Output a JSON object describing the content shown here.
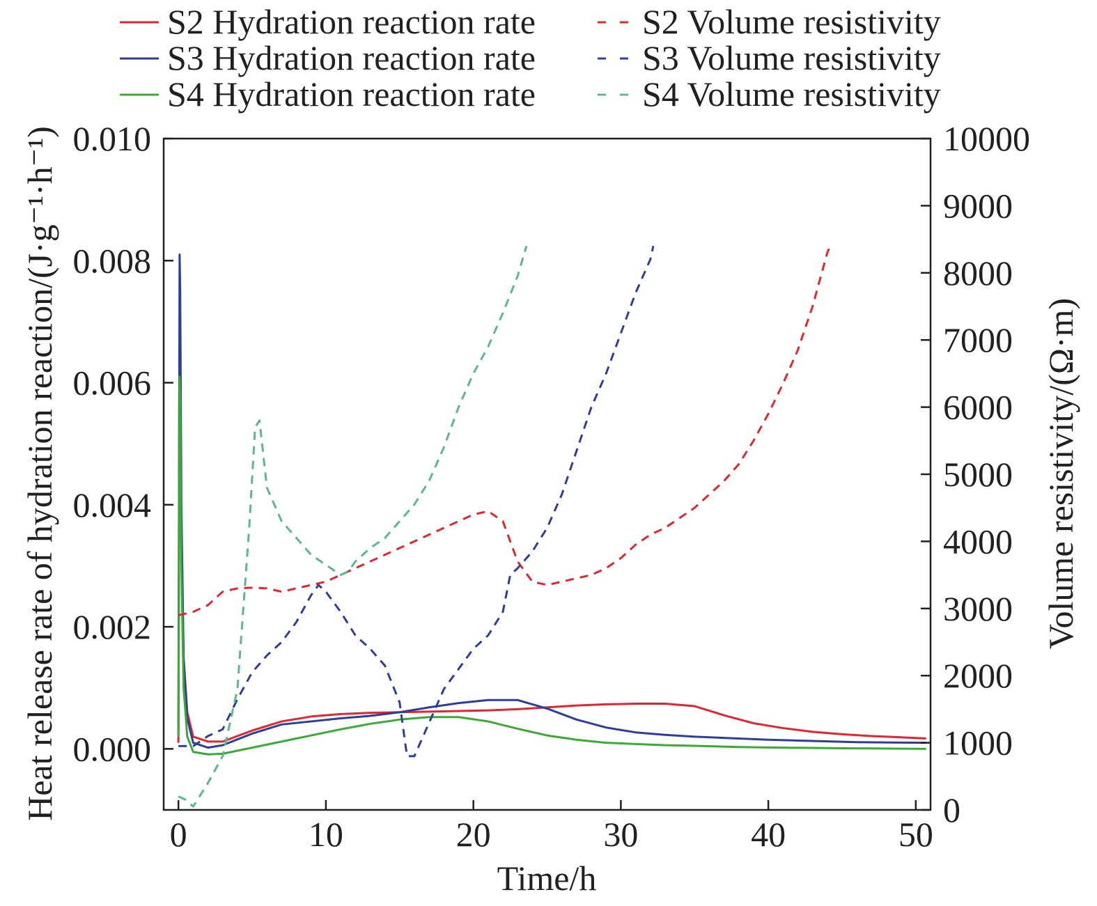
{
  "chart_data": {
    "type": "line",
    "title": "",
    "xlabel": "Time/h",
    "ylabel_left": "Heat release rate of hydration reaction/(J·g⁻¹·h⁻¹)",
    "ylabel_right": "Volume resistivity/(Ω·m)",
    "xlim": [
      -1,
      51
    ],
    "ylim_left": [
      -0.001,
      0.01
    ],
    "ylim_right": [
      0,
      10000
    ],
    "x_ticks": [
      "0",
      "10",
      "20",
      "30",
      "40",
      "50"
    ],
    "y_left_ticks": [
      "0.000",
      "0.002",
      "0.004",
      "0.006",
      "0.008",
      "0.010"
    ],
    "y_right_ticks": [
      "0",
      "1000",
      "2000",
      "3000",
      "4000",
      "5000",
      "6000",
      "7000",
      "8000",
      "9000",
      "10000"
    ],
    "grid": false,
    "legend_position": "top",
    "series": [
      {
        "name": "S2 Hydration reaction rate",
        "axis": "left",
        "style": "solid",
        "color": "#e0262f",
        "points": [
          [
            0.0,
            0.0001
          ],
          [
            0.06,
            0.0058
          ],
          [
            0.1,
            0.0062
          ],
          [
            0.2,
            0.0035
          ],
          [
            0.35,
            0.0015
          ],
          [
            0.6,
            0.0006
          ],
          [
            1,
            0.0002
          ],
          [
            2,
            0.00012
          ],
          [
            3,
            0.00012
          ],
          [
            5,
            0.0003
          ],
          [
            7,
            0.00045
          ],
          [
            9,
            0.00053
          ],
          [
            11,
            0.00057
          ],
          [
            13,
            0.00059
          ],
          [
            15,
            0.0006
          ],
          [
            17,
            0.00061
          ],
          [
            19,
            0.00062
          ],
          [
            21,
            0.00063
          ],
          [
            23,
            0.00065
          ],
          [
            25,
            0.00068
          ],
          [
            27,
            0.00071
          ],
          [
            29,
            0.00073
          ],
          [
            31,
            0.00074
          ],
          [
            33,
            0.00074
          ],
          [
            35,
            0.0007
          ],
          [
            37,
            0.00055
          ],
          [
            39,
            0.00042
          ],
          [
            41,
            0.00034
          ],
          [
            43,
            0.00028
          ],
          [
            45,
            0.00024
          ],
          [
            47,
            0.00021
          ],
          [
            49,
            0.00019
          ],
          [
            50.7,
            0.00017
          ]
        ]
      },
      {
        "name": "S3 Hydration reaction rate",
        "axis": "left",
        "style": "solid",
        "color": "#2c3e99",
        "points": [
          [
            0.0,
            0.0003
          ],
          [
            0.08,
            0.0081
          ],
          [
            0.12,
            0.0075
          ],
          [
            0.2,
            0.004
          ],
          [
            0.35,
            0.0015
          ],
          [
            0.6,
            0.0005
          ],
          [
            1,
            0.0001
          ],
          [
            2,
            2e-05
          ],
          [
            3,
            6e-05
          ],
          [
            5,
            0.00025
          ],
          [
            7,
            0.0004
          ],
          [
            9,
            0.00045
          ],
          [
            11,
            0.0005
          ],
          [
            13,
            0.00054
          ],
          [
            15,
            0.0006
          ],
          [
            17,
            0.00068
          ],
          [
            19,
            0.00075
          ],
          [
            21,
            0.0008
          ],
          [
            23,
            0.0008
          ],
          [
            25,
            0.00066
          ],
          [
            27,
            0.00048
          ],
          [
            29,
            0.00035
          ],
          [
            31,
            0.00027
          ],
          [
            33,
            0.00023
          ],
          [
            35,
            0.0002
          ],
          [
            37,
            0.00018
          ],
          [
            40,
            0.00015
          ],
          [
            43,
            0.00013
          ],
          [
            46,
            0.00011
          ],
          [
            50.7,
            0.0001
          ]
        ]
      },
      {
        "name": "S4 Hydration reaction rate",
        "axis": "left",
        "style": "solid",
        "color": "#3aaa35",
        "points": [
          [
            0.0,
            0.0002
          ],
          [
            0.08,
            0.0061
          ],
          [
            0.12,
            0.0058
          ],
          [
            0.2,
            0.003
          ],
          [
            0.35,
            0.001
          ],
          [
            0.6,
            0.0002
          ],
          [
            1,
            -5e-05
          ],
          [
            2,
            -9e-05
          ],
          [
            3,
            -8e-05
          ],
          [
            5,
            2e-05
          ],
          [
            7,
            0.00012
          ],
          [
            9,
            0.00022
          ],
          [
            11,
            0.00032
          ],
          [
            13,
            0.00041
          ],
          [
            15,
            0.00048
          ],
          [
            17,
            0.00052
          ],
          [
            19,
            0.00052
          ],
          [
            21,
            0.00045
          ],
          [
            23,
            0.00033
          ],
          [
            25,
            0.00022
          ],
          [
            27,
            0.00015
          ],
          [
            29,
            0.0001
          ],
          [
            31,
            8e-05
          ],
          [
            33,
            6e-05
          ],
          [
            35,
            5e-05
          ],
          [
            38,
            3e-05
          ],
          [
            41,
            2e-05
          ],
          [
            45,
            1e-05
          ],
          [
            50.7,
            0.0
          ]
        ]
      },
      {
        "name": "S2 Volume resistivity",
        "axis": "right",
        "style": "dashed",
        "color": "#e0262f",
        "points": [
          [
            0,
            2900
          ],
          [
            1,
            2950
          ],
          [
            2,
            3050
          ],
          [
            3,
            3250
          ],
          [
            4,
            3300
          ],
          [
            5,
            3310
          ],
          [
            6,
            3300
          ],
          [
            7,
            3250
          ],
          [
            8,
            3300
          ],
          [
            9,
            3350
          ],
          [
            10,
            3400
          ],
          [
            11,
            3500
          ],
          [
            12,
            3600
          ],
          [
            13,
            3700
          ],
          [
            14,
            3800
          ],
          [
            15,
            3900
          ],
          [
            16,
            4000
          ],
          [
            17,
            4100
          ],
          [
            18,
            4200
          ],
          [
            19,
            4300
          ],
          [
            20,
            4400
          ],
          [
            21,
            4450
          ],
          [
            22,
            4300
          ],
          [
            23,
            3700
          ],
          [
            24,
            3400
          ],
          [
            25,
            3350
          ],
          [
            26,
            3400
          ],
          [
            27,
            3450
          ],
          [
            28,
            3500
          ],
          [
            29,
            3600
          ],
          [
            30,
            3750
          ],
          [
            31,
            3950
          ],
          [
            32,
            4100
          ],
          [
            33,
            4200
          ],
          [
            34,
            4350
          ],
          [
            35,
            4500
          ],
          [
            36,
            4700
          ],
          [
            37,
            4900
          ],
          [
            38,
            5150
          ],
          [
            39,
            5500
          ],
          [
            40,
            5900
          ],
          [
            41,
            6350
          ],
          [
            42,
            6850
          ],
          [
            43,
            7500
          ],
          [
            44,
            8300
          ],
          [
            44.2,
            8400
          ]
        ]
      },
      {
        "name": "S3 Volume resistivity",
        "axis": "right",
        "style": "dashed",
        "color": "#2c3e99",
        "points": [
          [
            0,
            950
          ],
          [
            1,
            950
          ],
          [
            2,
            1100
          ],
          [
            3,
            1200
          ],
          [
            4,
            1650
          ],
          [
            5,
            2050
          ],
          [
            6,
            2300
          ],
          [
            7,
            2500
          ],
          [
            8,
            2800
          ],
          [
            9,
            3200
          ],
          [
            9.5,
            3350
          ],
          [
            10,
            3250
          ],
          [
            11,
            2950
          ],
          [
            12,
            2600
          ],
          [
            13,
            2400
          ],
          [
            14,
            2150
          ],
          [
            15,
            1600
          ],
          [
            15.5,
            800
          ],
          [
            16,
            800
          ],
          [
            17,
            1300
          ],
          [
            18,
            1800
          ],
          [
            19,
            2100
          ],
          [
            20,
            2400
          ],
          [
            21,
            2600
          ],
          [
            22,
            2950
          ],
          [
            22.5,
            3500
          ],
          [
            23,
            3600
          ],
          [
            24,
            3850
          ],
          [
            25,
            4200
          ],
          [
            26,
            4700
          ],
          [
            27,
            5350
          ],
          [
            28,
            6000
          ],
          [
            29,
            6500
          ],
          [
            30,
            7100
          ],
          [
            31,
            7700
          ],
          [
            32,
            8200
          ],
          [
            32.2,
            8400
          ]
        ]
      },
      {
        "name": "S4 Volume resistivity",
        "axis": "right",
        "style": "dashed",
        "color": "#5cb88a",
        "points": [
          [
            0,
            200
          ],
          [
            0.5,
            150
          ],
          [
            1,
            50
          ],
          [
            2,
            400
          ],
          [
            3,
            800
          ],
          [
            4,
            1800
          ],
          [
            4.8,
            4200
          ],
          [
            5.2,
            5700
          ],
          [
            5.5,
            5800
          ],
          [
            6,
            4800
          ],
          [
            7,
            4300
          ],
          [
            8,
            4050
          ],
          [
            9,
            3800
          ],
          [
            10,
            3650
          ],
          [
            11,
            3500
          ],
          [
            11.5,
            3550
          ],
          [
            12,
            3700
          ],
          [
            13,
            3900
          ],
          [
            14,
            4050
          ],
          [
            15,
            4300
          ],
          [
            16,
            4550
          ],
          [
            17,
            4900
          ],
          [
            18,
            5400
          ],
          [
            19,
            6000
          ],
          [
            20,
            6500
          ],
          [
            21,
            6900
          ],
          [
            22,
            7400
          ],
          [
            23,
            7950
          ],
          [
            23.6,
            8400
          ]
        ]
      }
    ]
  },
  "legend": [
    {
      "label": "S2 Hydration reaction rate",
      "color": "#e0262f",
      "dashed": false
    },
    {
      "label": "S2 Volume resistivity",
      "color": "#e0262f",
      "dashed": true
    },
    {
      "label": "S3 Hydration reaction rate",
      "color": "#2c3e99",
      "dashed": false
    },
    {
      "label": "S3 Volume resistivity",
      "color": "#2c3e99",
      "dashed": true
    },
    {
      "label": "S4 Hydration reaction rate",
      "color": "#3aaa35",
      "dashed": false
    },
    {
      "label": "S4 Volume resistivity",
      "color": "#5cb88a",
      "dashed": true
    }
  ]
}
